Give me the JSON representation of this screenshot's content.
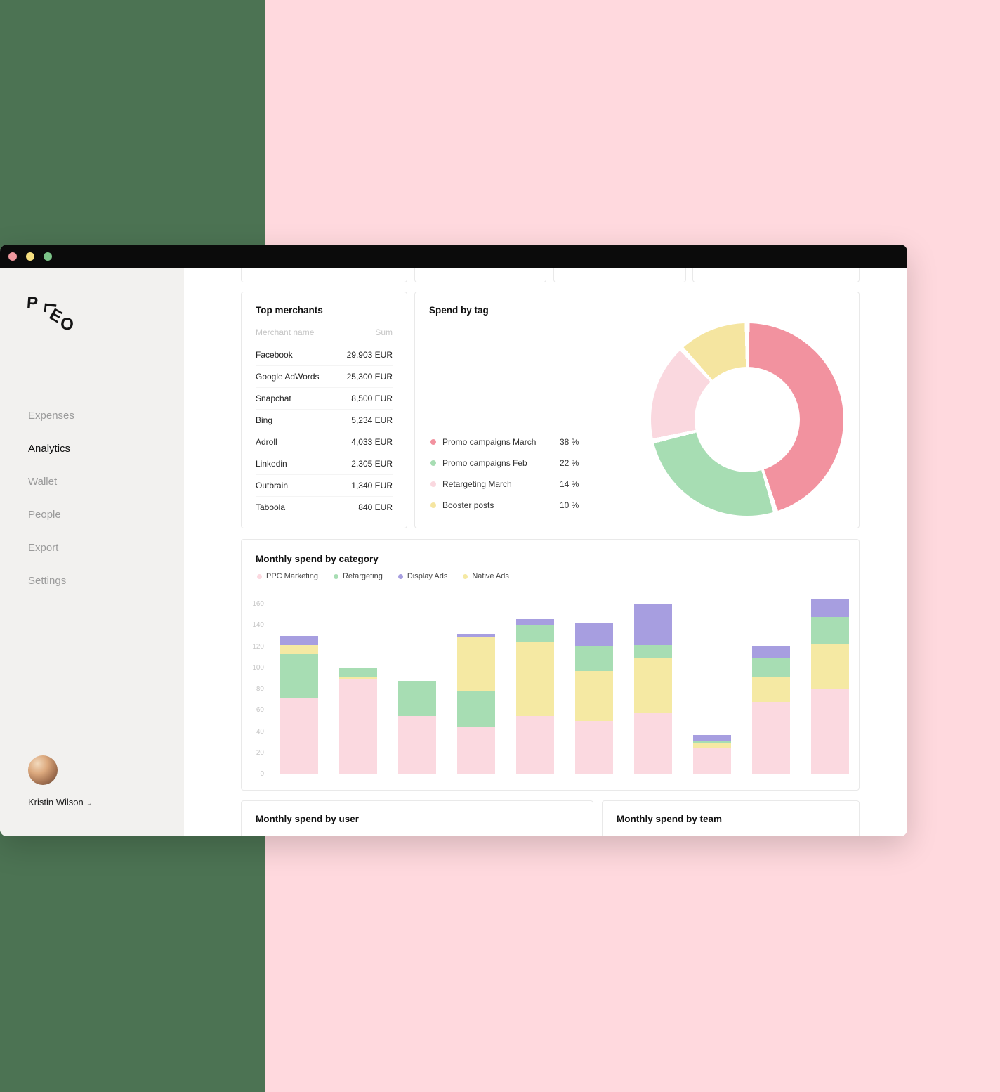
{
  "background": {
    "left_color": "#4C7353",
    "right_color": "#FFD9DE"
  },
  "window": {
    "titlebar": {
      "dots": [
        {
          "name": "close",
          "color": "#F0999F"
        },
        {
          "name": "minimize",
          "color": "#F6DF7F"
        },
        {
          "name": "zoom",
          "color": "#7CC488"
        }
      ]
    },
    "sidebar": {
      "logo_letters": [
        "P",
        "L",
        "E",
        "O"
      ],
      "items": [
        {
          "label": "Expenses",
          "active": false
        },
        {
          "label": "Analytics",
          "active": true
        },
        {
          "label": "Wallet",
          "active": false
        },
        {
          "label": "People",
          "active": false
        },
        {
          "label": "Export",
          "active": false
        },
        {
          "label": "Settings",
          "active": false
        }
      ],
      "user": {
        "name": "Kristin Wilson",
        "chevron": "⌄"
      }
    },
    "main": {
      "top_merchants": {
        "title": "Top merchants",
        "columns": [
          "Merchant name",
          "Sum"
        ],
        "rows": [
          [
            "Facebook",
            "29,903 EUR"
          ],
          [
            "Google AdWords",
            "25,300 EUR"
          ],
          [
            "Snapchat",
            "8,500 EUR"
          ],
          [
            "Bing",
            "5,234 EUR"
          ],
          [
            "Adroll",
            "4,033 EUR"
          ],
          [
            "Linkedin",
            "2,305 EUR"
          ],
          [
            "Outbrain",
            "1,340 EUR"
          ],
          [
            "Taboola",
            "840 EUR"
          ]
        ]
      },
      "spend_by_tag": {
        "title": "Spend by tag"
      },
      "monthly_by_category": {
        "title": "Monthly spend by category"
      },
      "monthly_by_user": {
        "title": "Monthly spend by user"
      },
      "monthly_by_team": {
        "title": "Monthly spend by team"
      }
    }
  },
  "chart_data": [
    {
      "type": "pie",
      "donut": true,
      "title": "Spend by tag",
      "labels": [
        "Promo campaigns March",
        "Promo campaigns Feb",
        "Retargeting March",
        "Booster posts"
      ],
      "values": [
        38,
        22,
        14,
        10
      ],
      "unit": "%",
      "colors": [
        "#F2929F",
        "#A7DDB3",
        "#FAD8DF",
        "#F5E5A0"
      ],
      "legend_position": "left"
    },
    {
      "type": "bar",
      "stacked": true,
      "title": "Monthly spend by category",
      "ylim": [
        0,
        165
      ],
      "yticks": [
        0,
        20,
        40,
        60,
        80,
        100,
        120,
        140,
        160
      ],
      "grid": false,
      "legend_position": "top",
      "categories_legend": [
        {
          "name": "PPC Marketing",
          "color": "#FBD9E0"
        },
        {
          "name": "Retargeting",
          "color": "#A7DDB3"
        },
        {
          "name": "Display Ads",
          "color": "#A79EE0"
        },
        {
          "name": "Native Ads",
          "color": "#F5E9A3"
        }
      ],
      "bars": [
        {
          "segments": [
            [
              "PPC Marketing",
              72
            ],
            [
              "Retargeting",
              41
            ],
            [
              "Native Ads",
              9
            ],
            [
              "Display Ads",
              8
            ]
          ]
        },
        {
          "segments": [
            [
              "PPC Marketing",
              90
            ],
            [
              "Native Ads",
              2
            ],
            [
              "Retargeting",
              8
            ]
          ]
        },
        {
          "segments": [
            [
              "PPC Marketing",
              55
            ],
            [
              "Retargeting",
              33
            ]
          ]
        },
        {
          "segments": [
            [
              "PPC Marketing",
              45
            ],
            [
              "Retargeting",
              34
            ],
            [
              "Native Ads",
              50
            ],
            [
              "Display Ads",
              3
            ]
          ]
        },
        {
          "segments": [
            [
              "PPC Marketing",
              55
            ],
            [
              "Native Ads",
              69
            ],
            [
              "Retargeting",
              17
            ],
            [
              "Display Ads",
              5
            ]
          ]
        },
        {
          "segments": [
            [
              "PPC Marketing",
              50
            ],
            [
              "Native Ads",
              47
            ],
            [
              "Retargeting",
              24
            ],
            [
              "Display Ads",
              22
            ]
          ]
        },
        {
          "segments": [
            [
              "PPC Marketing",
              58
            ],
            [
              "Native Ads",
              51
            ],
            [
              "Retargeting",
              13
            ],
            [
              "Display Ads",
              38
            ]
          ]
        },
        {
          "segments": [
            [
              "PPC Marketing",
              25
            ],
            [
              "Native Ads",
              4
            ],
            [
              "Retargeting",
              3
            ],
            [
              "Display Ads",
              5
            ]
          ]
        },
        {
          "segments": [
            [
              "PPC Marketing",
              68
            ],
            [
              "Native Ads",
              23
            ],
            [
              "Retargeting",
              19
            ],
            [
              "Display Ads",
              11
            ]
          ]
        },
        {
          "segments": [
            [
              "PPC Marketing",
              80
            ],
            [
              "Native Ads",
              42
            ],
            [
              "Retargeting",
              26
            ],
            [
              "Display Ads",
              17
            ]
          ]
        }
      ]
    }
  ]
}
